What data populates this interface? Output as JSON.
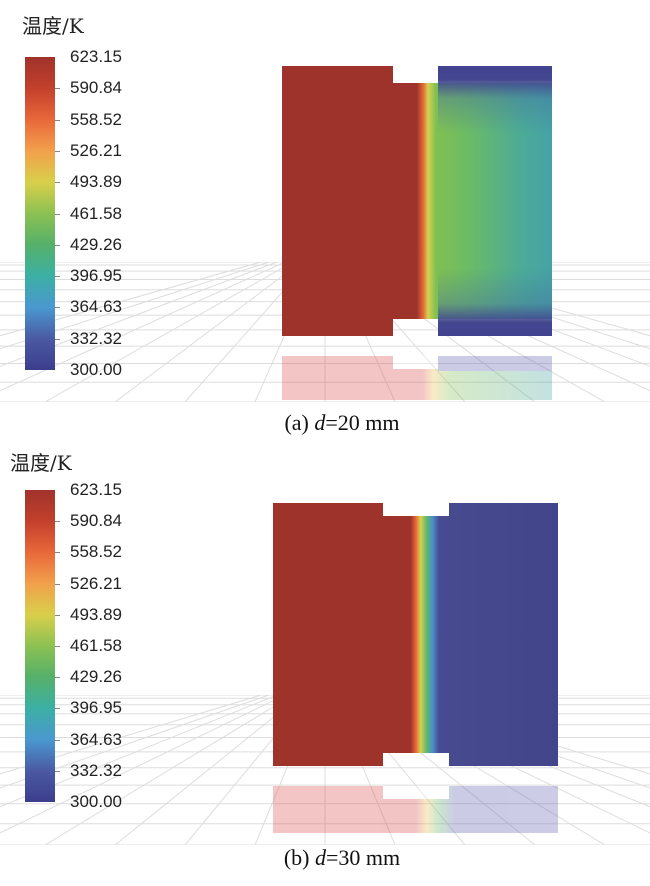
{
  "panels": [
    {
      "title": "温度/K",
      "ticks": [
        "623.15",
        "590.84",
        "558.52",
        "526.21",
        "493.89",
        "461.58",
        "429.26",
        "396.95",
        "364.63",
        "332.32",
        "300.00"
      ],
      "caption_prefix": "(a) ",
      "caption_var": "d",
      "caption_suffix": "=20 mm"
    },
    {
      "title": "温度/K",
      "ticks": [
        "623.15",
        "590.84",
        "558.52",
        "526.21",
        "493.89",
        "461.58",
        "429.26",
        "396.95",
        "364.63",
        "332.32",
        "300.00"
      ],
      "caption_prefix": "(b) ",
      "caption_var": "d",
      "caption_suffix": "=30 mm"
    }
  ],
  "colors": {
    "hot": "#9e332c",
    "cold": "#43468c"
  }
}
